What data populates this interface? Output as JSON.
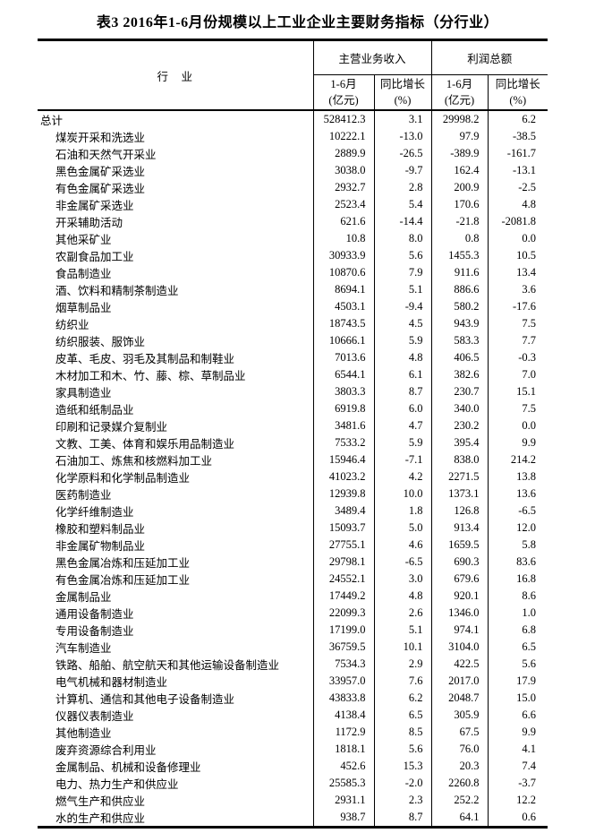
{
  "title": "表3 2016年1-6月份规模以上工业企业主要财务指标（分行业）",
  "table": {
    "industry_header": "行　业",
    "groups": [
      {
        "label": "主营业务收入"
      },
      {
        "label": "利润总额"
      }
    ],
    "sub_headers": [
      {
        "line1": "1-6月",
        "line2": "(亿元)"
      },
      {
        "line1": "同比增长",
        "line2": "(%)"
      },
      {
        "line1": "1-6月",
        "line2": "(亿元)"
      },
      {
        "line1": "同比增长",
        "line2": "(%)"
      }
    ],
    "rows": [
      {
        "industry": "总计",
        "revenue": "528412.3",
        "revenue_growth": "3.1",
        "profit": "29998.2",
        "profit_growth": "6.2",
        "total": true
      },
      {
        "industry": "煤炭开采和洗选业",
        "revenue": "10222.1",
        "revenue_growth": "-13.0",
        "profit": "97.9",
        "profit_growth": "-38.5"
      },
      {
        "industry": "石油和天然气开采业",
        "revenue": "2889.9",
        "revenue_growth": "-26.5",
        "profit": "-389.9",
        "profit_growth": "-161.7"
      },
      {
        "industry": "黑色金属矿采选业",
        "revenue": "3038.0",
        "revenue_growth": "-9.7",
        "profit": "162.4",
        "profit_growth": "-13.1"
      },
      {
        "industry": "有色金属矿采选业",
        "revenue": "2932.7",
        "revenue_growth": "2.8",
        "profit": "200.9",
        "profit_growth": "-2.5"
      },
      {
        "industry": "非金属矿采选业",
        "revenue": "2523.4",
        "revenue_growth": "5.4",
        "profit": "170.6",
        "profit_growth": "4.8"
      },
      {
        "industry": "开采辅助活动",
        "revenue": "621.6",
        "revenue_growth": "-14.4",
        "profit": "-21.8",
        "profit_growth": "-2081.8"
      },
      {
        "industry": "其他采矿业",
        "revenue": "10.8",
        "revenue_growth": "8.0",
        "profit": "0.8",
        "profit_growth": "0.0"
      },
      {
        "industry": "农副食品加工业",
        "revenue": "30933.9",
        "revenue_growth": "5.6",
        "profit": "1455.3",
        "profit_growth": "10.5"
      },
      {
        "industry": "食品制造业",
        "revenue": "10870.6",
        "revenue_growth": "7.9",
        "profit": "911.6",
        "profit_growth": "13.4"
      },
      {
        "industry": "酒、饮料和精制茶制造业",
        "revenue": "8694.1",
        "revenue_growth": "5.1",
        "profit": "886.6",
        "profit_growth": "3.6"
      },
      {
        "industry": "烟草制品业",
        "revenue": "4503.1",
        "revenue_growth": "-9.4",
        "profit": "580.2",
        "profit_growth": "-17.6"
      },
      {
        "industry": "纺织业",
        "revenue": "18743.5",
        "revenue_growth": "4.5",
        "profit": "943.9",
        "profit_growth": "7.5"
      },
      {
        "industry": "纺织服装、服饰业",
        "revenue": "10666.1",
        "revenue_growth": "5.9",
        "profit": "583.3",
        "profit_growth": "7.7"
      },
      {
        "industry": "皮革、毛皮、羽毛及其制品和制鞋业",
        "revenue": "7013.6",
        "revenue_growth": "4.8",
        "profit": "406.5",
        "profit_growth": "-0.3"
      },
      {
        "industry": "木材加工和木、竹、藤、棕、草制品业",
        "revenue": "6544.1",
        "revenue_growth": "6.1",
        "profit": "382.6",
        "profit_growth": "7.0"
      },
      {
        "industry": "家具制造业",
        "revenue": "3803.3",
        "revenue_growth": "8.7",
        "profit": "230.7",
        "profit_growth": "15.1"
      },
      {
        "industry": "造纸和纸制品业",
        "revenue": "6919.8",
        "revenue_growth": "6.0",
        "profit": "340.0",
        "profit_growth": "7.5"
      },
      {
        "industry": "印刷和记录媒介复制业",
        "revenue": "3481.6",
        "revenue_growth": "4.7",
        "profit": "230.2",
        "profit_growth": "0.0"
      },
      {
        "industry": "文教、工美、体育和娱乐用品制造业",
        "revenue": "7533.2",
        "revenue_growth": "5.9",
        "profit": "395.4",
        "profit_growth": "9.9"
      },
      {
        "industry": "石油加工、炼焦和核燃料加工业",
        "revenue": "15946.4",
        "revenue_growth": "-7.1",
        "profit": "838.0",
        "profit_growth": "214.2"
      },
      {
        "industry": "化学原料和化学制品制造业",
        "revenue": "41023.2",
        "revenue_growth": "4.2",
        "profit": "2271.5",
        "profit_growth": "13.8"
      },
      {
        "industry": "医药制造业",
        "revenue": "12939.8",
        "revenue_growth": "10.0",
        "profit": "1373.1",
        "profit_growth": "13.6"
      },
      {
        "industry": "化学纤维制造业",
        "revenue": "3489.4",
        "revenue_growth": "1.8",
        "profit": "126.8",
        "profit_growth": "-6.5"
      },
      {
        "industry": "橡胶和塑料制品业",
        "revenue": "15093.7",
        "revenue_growth": "5.0",
        "profit": "913.4",
        "profit_growth": "12.0"
      },
      {
        "industry": "非金属矿物制品业",
        "revenue": "27755.1",
        "revenue_growth": "4.6",
        "profit": "1659.5",
        "profit_growth": "5.8"
      },
      {
        "industry": "黑色金属冶炼和压延加工业",
        "revenue": "29798.1",
        "revenue_growth": "-6.5",
        "profit": "690.3",
        "profit_growth": "83.6"
      },
      {
        "industry": "有色金属冶炼和压延加工业",
        "revenue": "24552.1",
        "revenue_growth": "3.0",
        "profit": "679.6",
        "profit_growth": "16.8"
      },
      {
        "industry": "金属制品业",
        "revenue": "17449.2",
        "revenue_growth": "4.8",
        "profit": "920.1",
        "profit_growth": "8.6"
      },
      {
        "industry": "通用设备制造业",
        "revenue": "22099.3",
        "revenue_growth": "2.6",
        "profit": "1346.0",
        "profit_growth": "1.0"
      },
      {
        "industry": "专用设备制造业",
        "revenue": "17199.0",
        "revenue_growth": "5.1",
        "profit": "974.1",
        "profit_growth": "6.8"
      },
      {
        "industry": "汽车制造业",
        "revenue": "36759.5",
        "revenue_growth": "10.1",
        "profit": "3104.0",
        "profit_growth": "6.5"
      },
      {
        "industry": "铁路、船舶、航空航天和其他运输设备制造业",
        "revenue": "7534.3",
        "revenue_growth": "2.9",
        "profit": "422.5",
        "profit_growth": "5.6"
      },
      {
        "industry": "电气机械和器材制造业",
        "revenue": "33957.0",
        "revenue_growth": "7.6",
        "profit": "2017.0",
        "profit_growth": "17.9"
      },
      {
        "industry": "计算机、通信和其他电子设备制造业",
        "revenue": "43833.8",
        "revenue_growth": "6.2",
        "profit": "2048.7",
        "profit_growth": "15.0"
      },
      {
        "industry": "仪器仪表制造业",
        "revenue": "4138.4",
        "revenue_growth": "6.5",
        "profit": "305.9",
        "profit_growth": "6.6"
      },
      {
        "industry": "其他制造业",
        "revenue": "1172.9",
        "revenue_growth": "8.5",
        "profit": "67.5",
        "profit_growth": "9.9"
      },
      {
        "industry": "废弃资源综合利用业",
        "revenue": "1818.1",
        "revenue_growth": "5.6",
        "profit": "76.0",
        "profit_growth": "4.1"
      },
      {
        "industry": "金属制品、机械和设备修理业",
        "revenue": "452.6",
        "revenue_growth": "15.3",
        "profit": "20.3",
        "profit_growth": "7.4"
      },
      {
        "industry": "电力、热力生产和供应业",
        "revenue": "25585.3",
        "revenue_growth": "-2.0",
        "profit": "2260.8",
        "profit_growth": "-3.7"
      },
      {
        "industry": "燃气生产和供应业",
        "revenue": "2931.1",
        "revenue_growth": "2.3",
        "profit": "252.2",
        "profit_growth": "12.2"
      },
      {
        "industry": "水的生产和供应业",
        "revenue": "938.7",
        "revenue_growth": "8.7",
        "profit": "64.1",
        "profit_growth": "0.6"
      }
    ]
  }
}
